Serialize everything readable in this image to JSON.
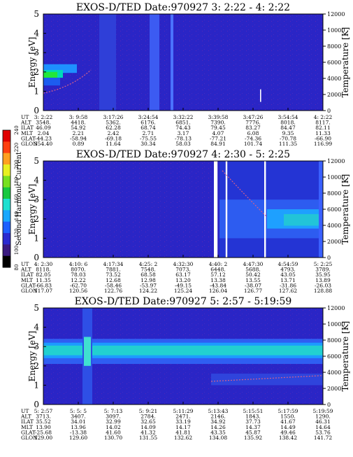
{
  "colorbar": {
    "label": "Second Harmonic Current",
    "ticks": [
      "240",
      "220",
      "200",
      "180",
      "160",
      "140",
      "120",
      "100",
      "80"
    ]
  },
  "chart_data": [
    {
      "type": "heatmap",
      "title": "EXOS-D/TED   Date:970927   3: 2:22 - 4: 2:22",
      "ylabel": "Energy [eV]",
      "y2label": "Temperature [K]",
      "yticks": [
        "0",
        "1",
        "2",
        "3",
        "4",
        "5"
      ],
      "y2ticks": [
        "0",
        "2000",
        "4000",
        "6000",
        "8000",
        "10000",
        "12000"
      ],
      "ylim": [
        0,
        5
      ],
      "y2lim": [
        0,
        12000
      ],
      "row_labels": [
        "UT",
        "ALT",
        "ILAT",
        "MLT",
        "GLAT",
        "GLON"
      ],
      "columns": [
        [
          "3: 2:22",
          "3548.",
          "46.09",
          "2.04",
          "-44.23",
          "354.40"
        ],
        [
          "3: 9:58",
          "4418.",
          "54.92",
          "2.21",
          "-58.94",
          "0.89"
        ],
        [
          "3:17:26",
          "5362.",
          "62.28",
          "2.42",
          "-69.18",
          "11.64"
        ],
        [
          "3:24:54",
          "6176.",
          "68.74",
          "2.71",
          "-75.55",
          "30.34"
        ],
        [
          "3:32:22",
          "6851.",
          "74.43",
          "3.17",
          "-78.13",
          "58.03"
        ],
        [
          "3:39:58",
          "7390.",
          "79.45",
          "4.07",
          "-77.21",
          "84.91"
        ],
        [
          "3:47:26",
          "7776.",
          "83.27",
          "6.08",
          "-74.36",
          "101.74"
        ],
        [
          "3:54:54",
          "8018.",
          "84.47",
          "9.35",
          "-70.78",
          "111.35"
        ],
        [
          "4: 2:22",
          "8117.",
          "82.11",
          "11.33",
          "-66.90",
          "116.99"
        ]
      ]
    },
    {
      "type": "heatmap",
      "title": "EXOS-D/TED   Date:970927   4: 2:30 - 5: 2:25",
      "ylabel": "Energy [eV]",
      "y2label": "Temperature [K]",
      "yticks": [
        "0",
        "1",
        "2",
        "3",
        "4",
        "5"
      ],
      "y2ticks": [
        "0",
        "2000",
        "4000",
        "6000",
        "8000",
        "10000",
        "12000"
      ],
      "ylim": [
        0,
        5
      ],
      "y2lim": [
        0,
        12000
      ],
      "row_labels": [
        "UT",
        "ALT",
        "ILAT",
        "MLT",
        "GLAT",
        "GLON"
      ],
      "columns": [
        [
          "4: 2:30",
          "8118.",
          "82.05",
          "11.35",
          "-66.83",
          "117.07"
        ],
        [
          "4:10: 6",
          "8070.",
          "78.03",
          "12.22",
          "-62.70",
          "120.56"
        ],
        [
          "4:17:34",
          "7881.",
          "73.52",
          "12.68",
          "-58.46",
          "122.76"
        ],
        [
          "4:25: 2",
          "7548.",
          "68.58",
          "12.98",
          "-53.97",
          "124.22"
        ],
        [
          "4:32:30",
          "7073.",
          "63.17",
          "13.20",
          "-49.15",
          "125.24"
        ],
        [
          "4:40: 2",
          "6448.",
          "57.12",
          "13.38",
          "-43.84",
          "126.04"
        ],
        [
          "4:47:30",
          "5688.",
          "50.42",
          "13.55",
          "-38.07",
          "126.77"
        ],
        [
          "4:54:59",
          "4793.",
          "43.05",
          "13.71",
          "-31.86",
          "127.62"
        ],
        [
          "5: 2:25",
          "3789.",
          "35.95",
          "13.89",
          "-26.03",
          "128.88"
        ]
      ]
    },
    {
      "type": "heatmap",
      "title": "EXOS-D/TED   Date:970927   5: 2:57 - 5:19:59",
      "ylabel": "Energy [eV]",
      "y2label": "Temperature [K]",
      "yticks": [
        "0",
        "1",
        "2",
        "3",
        "4",
        "5"
      ],
      "y2ticks": [
        "0",
        "2000",
        "4000",
        "6000",
        "8000",
        "10000",
        "12000"
      ],
      "ylim": [
        0,
        5
      ],
      "y2lim": [
        0,
        12000
      ],
      "row_labels": [
        "UT",
        "ALT",
        "ILAT",
        "MLT",
        "GLAT",
        "GLON"
      ],
      "columns": [
        [
          "5: 2:57",
          "3713.",
          "35.52",
          "13.90",
          "-25.68",
          "129.00"
        ],
        [
          "5: 5: 5",
          "3407.",
          "34.01",
          "13.96",
          "-13.38",
          "129.60"
        ],
        [
          "5: 7:13",
          "3097.",
          "32.99",
          "14.02",
          "41.60",
          "130.70"
        ],
        [
          "5: 9:21",
          "2784.",
          "32.65",
          "14.09",
          "41.32",
          "131.55"
        ],
        [
          "5:11:29",
          "2471.",
          "33.19",
          "14.17",
          "41.81",
          "132.62"
        ],
        [
          "5:13:43",
          "2146.",
          "34.92",
          "14.26",
          "43.35",
          "134.08"
        ],
        [
          "5:15:51",
          "1843.",
          "37.73",
          "14.37",
          "45.87",
          "135.92"
        ],
        [
          "5:17:59",
          "1550.",
          "41.67",
          "14.49",
          "49.46",
          "138.42"
        ],
        [
          "5:19:59",
          "1290.",
          "46.31",
          "14.64",
          "53.76",
          "141.72"
        ]
      ]
    }
  ]
}
